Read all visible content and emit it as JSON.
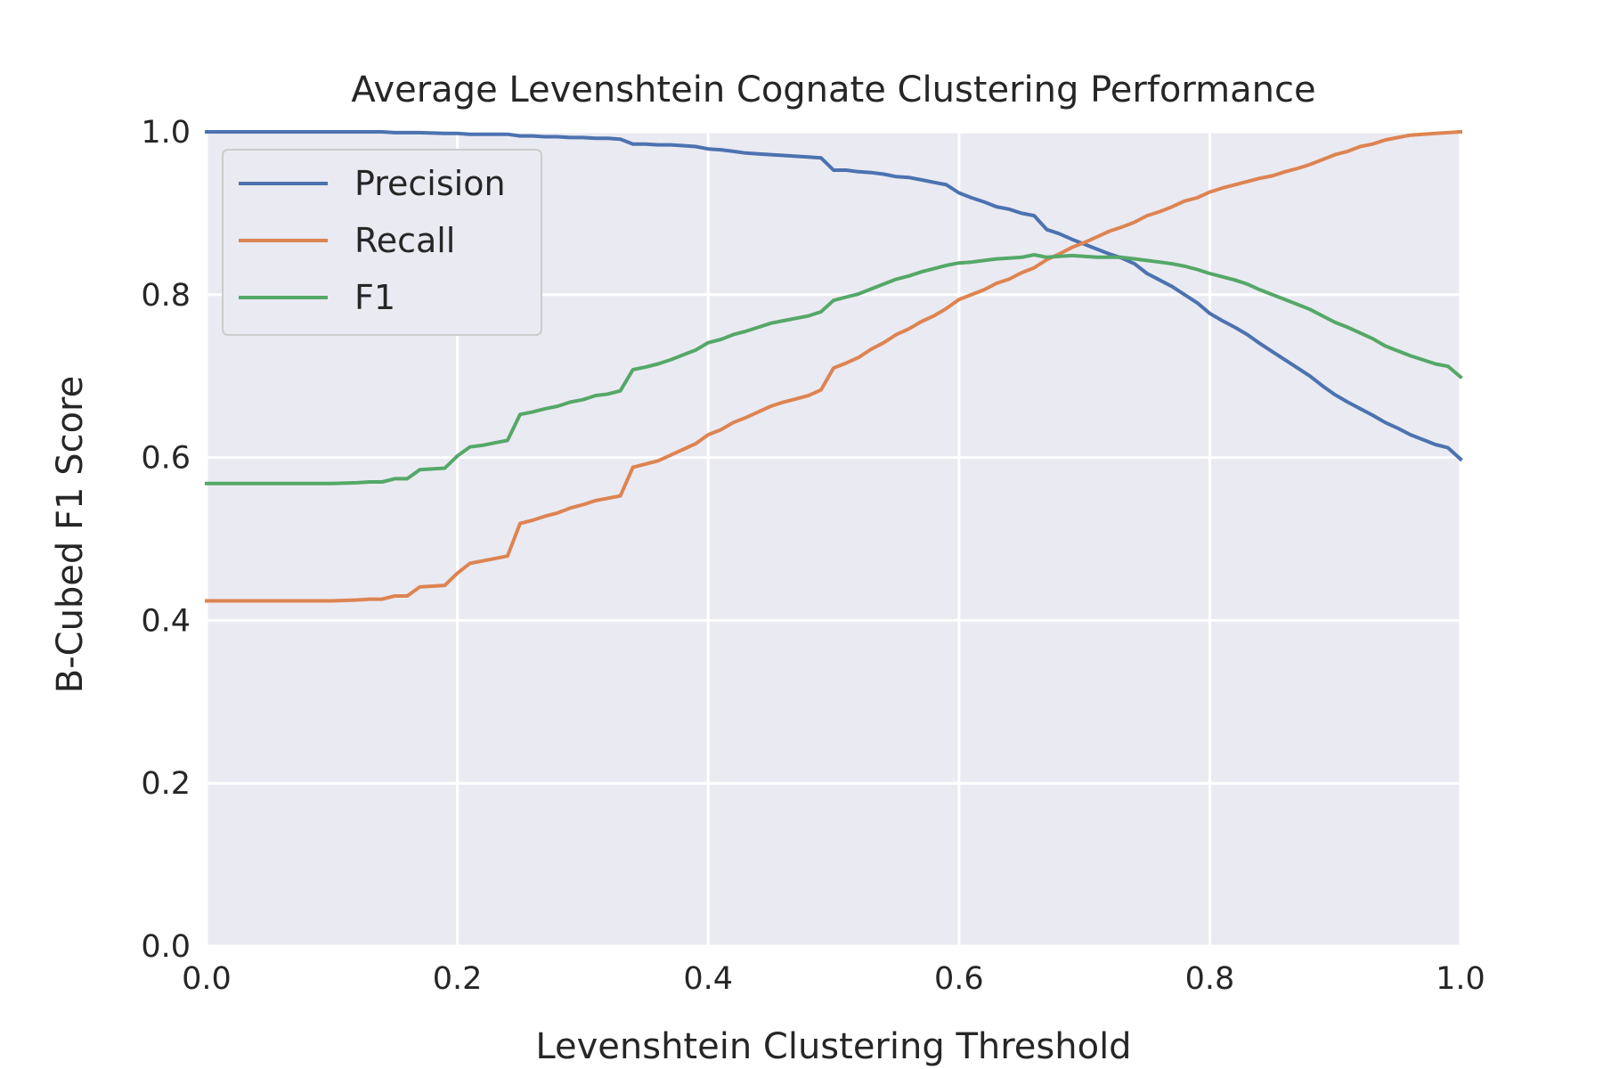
{
  "chart_data": {
    "type": "line",
    "title": "Average Levenshtein Cognate Clustering Performance",
    "xlabel": "Levenshtein Clustering Threshold",
    "ylabel": "B-Cubed F1 Score",
    "xlim": [
      0.0,
      1.0
    ],
    "ylim": [
      0.0,
      1.0
    ],
    "xticks": [
      "0.0",
      "0.2",
      "0.4",
      "0.6",
      "0.8",
      "1.0"
    ],
    "yticks": [
      "0.0",
      "0.2",
      "0.4",
      "0.6",
      "0.8",
      "1.0"
    ],
    "grid": true,
    "background": "#eaeaf2",
    "legend_position": "upper-left",
    "x": [
      0.0,
      0.05,
      0.1,
      0.12,
      0.13,
      0.14,
      0.15,
      0.16,
      0.17,
      0.19,
      0.2,
      0.21,
      0.22,
      0.23,
      0.24,
      0.25,
      0.26,
      0.27,
      0.28,
      0.29,
      0.3,
      0.31,
      0.32,
      0.33,
      0.34,
      0.35,
      0.36,
      0.37,
      0.38,
      0.39,
      0.4,
      0.41,
      0.42,
      0.43,
      0.44,
      0.45,
      0.46,
      0.47,
      0.48,
      0.49,
      0.5,
      0.51,
      0.52,
      0.53,
      0.54,
      0.55,
      0.56,
      0.57,
      0.58,
      0.59,
      0.6,
      0.61,
      0.62,
      0.63,
      0.64,
      0.65,
      0.66,
      0.67,
      0.68,
      0.69,
      0.7,
      0.71,
      0.72,
      0.73,
      0.74,
      0.75,
      0.76,
      0.77,
      0.78,
      0.79,
      0.8,
      0.81,
      0.82,
      0.83,
      0.84,
      0.85,
      0.86,
      0.87,
      0.88,
      0.89,
      0.9,
      0.91,
      0.92,
      0.93,
      0.94,
      0.95,
      0.96,
      0.97,
      0.98,
      0.99,
      1.0
    ],
    "series": [
      {
        "name": "Precision",
        "color": "#4c72b0",
        "values": [
          1.0,
          1.0,
          1.0,
          1.0,
          1.0,
          1.0,
          0.999,
          0.999,
          0.999,
          0.998,
          0.998,
          0.997,
          0.997,
          0.997,
          0.997,
          0.995,
          0.995,
          0.994,
          0.994,
          0.993,
          0.993,
          0.992,
          0.992,
          0.991,
          0.985,
          0.985,
          0.984,
          0.984,
          0.983,
          0.982,
          0.979,
          0.978,
          0.976,
          0.974,
          0.973,
          0.972,
          0.971,
          0.97,
          0.969,
          0.968,
          0.953,
          0.953,
          0.951,
          0.95,
          0.948,
          0.945,
          0.944,
          0.941,
          0.938,
          0.935,
          0.925,
          0.919,
          0.914,
          0.908,
          0.905,
          0.9,
          0.897,
          0.88,
          0.875,
          0.868,
          0.862,
          0.856,
          0.85,
          0.845,
          0.838,
          0.826,
          0.818,
          0.81,
          0.8,
          0.79,
          0.777,
          0.768,
          0.76,
          0.751,
          0.74,
          0.73,
          0.72,
          0.71,
          0.7,
          0.688,
          0.677,
          0.668,
          0.66,
          0.652,
          0.643,
          0.636,
          0.628,
          0.622,
          0.616,
          0.612,
          0.598
        ]
      },
      {
        "name": "Recall",
        "color": "#dd8452",
        "values": [
          0.424,
          0.424,
          0.424,
          0.425,
          0.426,
          0.426,
          0.43,
          0.43,
          0.441,
          0.443,
          0.458,
          0.47,
          0.473,
          0.476,
          0.479,
          0.519,
          0.523,
          0.528,
          0.532,
          0.538,
          0.542,
          0.547,
          0.55,
          0.553,
          0.588,
          0.592,
          0.596,
          0.603,
          0.61,
          0.617,
          0.628,
          0.634,
          0.643,
          0.649,
          0.656,
          0.663,
          0.668,
          0.672,
          0.676,
          0.683,
          0.71,
          0.716,
          0.723,
          0.733,
          0.741,
          0.751,
          0.758,
          0.767,
          0.774,
          0.783,
          0.794,
          0.8,
          0.806,
          0.814,
          0.819,
          0.827,
          0.833,
          0.843,
          0.85,
          0.858,
          0.864,
          0.871,
          0.878,
          0.883,
          0.889,
          0.897,
          0.902,
          0.908,
          0.915,
          0.919,
          0.926,
          0.931,
          0.935,
          0.939,
          0.943,
          0.946,
          0.951,
          0.955,
          0.96,
          0.966,
          0.972,
          0.976,
          0.982,
          0.985,
          0.99,
          0.993,
          0.996,
          0.997,
          0.998,
          0.999,
          1.0
        ]
      },
      {
        "name": "F1",
        "color": "#55a868",
        "values": [
          0.568,
          0.568,
          0.568,
          0.569,
          0.57,
          0.57,
          0.574,
          0.574,
          0.585,
          0.587,
          0.602,
          0.613,
          0.615,
          0.618,
          0.621,
          0.653,
          0.656,
          0.66,
          0.663,
          0.668,
          0.671,
          0.676,
          0.678,
          0.682,
          0.708,
          0.711,
          0.715,
          0.72,
          0.726,
          0.732,
          0.741,
          0.745,
          0.751,
          0.755,
          0.76,
          0.765,
          0.768,
          0.771,
          0.774,
          0.779,
          0.793,
          0.797,
          0.801,
          0.807,
          0.813,
          0.819,
          0.823,
          0.828,
          0.832,
          0.836,
          0.839,
          0.84,
          0.842,
          0.844,
          0.845,
          0.846,
          0.849,
          0.846,
          0.847,
          0.848,
          0.847,
          0.846,
          0.846,
          0.846,
          0.844,
          0.842,
          0.84,
          0.838,
          0.835,
          0.831,
          0.826,
          0.822,
          0.818,
          0.813,
          0.806,
          0.8,
          0.794,
          0.788,
          0.782,
          0.774,
          0.766,
          0.76,
          0.753,
          0.746,
          0.737,
          0.731,
          0.725,
          0.72,
          0.715,
          0.712,
          0.699
        ]
      }
    ]
  }
}
